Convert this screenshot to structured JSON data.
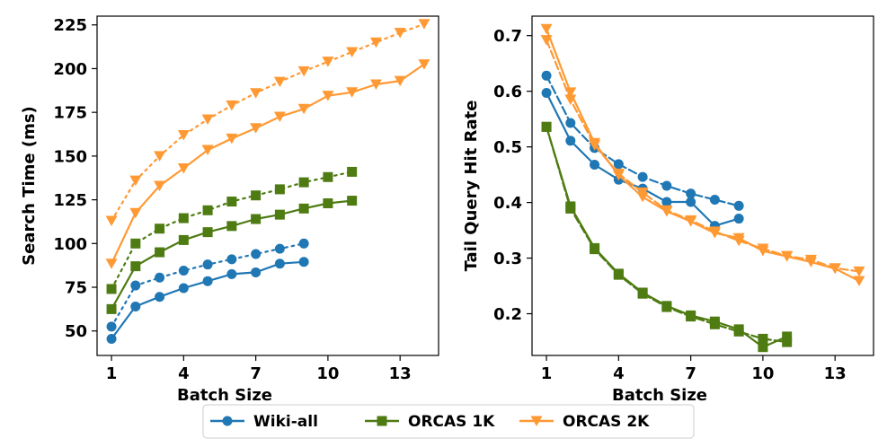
{
  "chart_data": [
    {
      "type": "line",
      "xlabel": "Batch Size",
      "ylabel": "Search Time (ms)",
      "xlim": [
        0.4,
        14.6
      ],
      "ylim": [
        36,
        230
      ],
      "xticks": [
        1,
        4,
        7,
        10,
        13
      ],
      "yticks": [
        50,
        75,
        100,
        125,
        150,
        175,
        200,
        225
      ],
      "series": [
        {
          "name": "Wiki-all",
          "variant": "solid",
          "color": "#1f77b4",
          "marker": "circle",
          "x": [
            1,
            2,
            3,
            4,
            5,
            6,
            7,
            8,
            9
          ],
          "y": [
            45.5,
            64,
            69.5,
            74.5,
            78.5,
            82.5,
            83.5,
            88.5,
            89.5
          ]
        },
        {
          "name": "Wiki-all",
          "variant": "dotted",
          "color": "#1f77b4",
          "marker": "circle",
          "x": [
            1,
            2,
            3,
            4,
            5,
            6,
            7,
            8,
            9
          ],
          "y": [
            52.5,
            76,
            80.5,
            84.5,
            88,
            91,
            94,
            97,
            100
          ]
        },
        {
          "name": "ORCAS 1K",
          "variant": "solid",
          "color": "#4e7b12",
          "marker": "square",
          "x": [
            1,
            2,
            3,
            4,
            5,
            6,
            7,
            8,
            9,
            10,
            11
          ],
          "y": [
            62.5,
            87,
            95,
            102,
            106.5,
            110,
            114,
            116.5,
            120,
            123,
            124.5
          ]
        },
        {
          "name": "ORCAS 1K",
          "variant": "dotted",
          "color": "#4e7b12",
          "marker": "square",
          "x": [
            1,
            2,
            3,
            4,
            5,
            6,
            7,
            8,
            9,
            10,
            11
          ],
          "y": [
            74,
            100,
            108.5,
            114.5,
            119,
            124,
            127.5,
            131,
            135,
            138,
            141
          ]
        },
        {
          "name": "ORCAS 2K",
          "variant": "solid",
          "color": "#ff9933",
          "marker": "triangle-down",
          "x": [
            1,
            2,
            3,
            4,
            5,
            6,
            7,
            8,
            9,
            10,
            11,
            12,
            13,
            14
          ],
          "y": [
            88.5,
            117.5,
            133,
            143,
            153.5,
            160,
            166,
            172.5,
            177,
            184.5,
            186.5,
            191,
            193,
            202.5
          ]
        },
        {
          "name": "ORCAS 2K",
          "variant": "dotted",
          "color": "#ff9933",
          "marker": "triangle-down",
          "x": [
            1,
            2,
            3,
            4,
            5,
            6,
            7,
            8,
            9,
            10,
            11,
            12,
            13,
            14
          ],
          "y": [
            113,
            136,
            150,
            162,
            171,
            179,
            186,
            192.5,
            198.5,
            204,
            209.5,
            215,
            220.5,
            225.5
          ]
        }
      ]
    },
    {
      "type": "line",
      "xlabel": "Batch Size",
      "ylabel": "Tail Query Hit Rate",
      "xlim": [
        0.4,
        14.6
      ],
      "ylim": [
        0.125,
        0.735
      ],
      "xticks": [
        1,
        4,
        7,
        10,
        13
      ],
      "yticks": [
        0.2,
        0.3,
        0.4,
        0.5,
        0.6,
        0.7
      ],
      "series": [
        {
          "name": "Wiki-all",
          "variant": "solid",
          "color": "#1f77b4",
          "marker": "circle",
          "x": [
            1,
            2,
            3,
            4,
            5,
            6,
            7,
            8,
            9
          ],
          "y": [
            0.597,
            0.511,
            0.468,
            0.441,
            0.425,
            0.401,
            0.401,
            0.358,
            0.371
          ]
        },
        {
          "name": "Wiki-all",
          "variant": "dashed",
          "color": "#1f77b4",
          "marker": "circle",
          "x": [
            1,
            2,
            3,
            4,
            5,
            6,
            7,
            8,
            9
          ],
          "y": [
            0.628,
            0.543,
            0.498,
            0.469,
            0.446,
            0.43,
            0.416,
            0.405,
            0.394
          ]
        },
        {
          "name": "ORCAS 1K",
          "variant": "solid",
          "color": "#4e7b12",
          "marker": "square",
          "x": [
            1,
            2,
            3,
            4,
            5,
            6,
            7,
            8,
            9,
            10,
            11
          ],
          "y": [
            0.536,
            0.393,
            0.318,
            0.272,
            0.238,
            0.214,
            0.197,
            0.186,
            0.172,
            0.14,
            0.159
          ]
        },
        {
          "name": "ORCAS 1K",
          "variant": "dashed",
          "color": "#4e7b12",
          "marker": "square",
          "x": [
            1,
            2,
            3,
            4,
            5,
            6,
            7,
            8,
            9,
            10,
            11
          ],
          "y": [
            0.536,
            0.389,
            0.316,
            0.27,
            0.236,
            0.212,
            0.195,
            0.181,
            0.168,
            0.155,
            0.149
          ]
        },
        {
          "name": "ORCAS 2K",
          "variant": "solid",
          "color": "#ff9933",
          "marker": "triangle-down",
          "x": [
            1,
            2,
            3,
            4,
            5,
            6,
            7,
            8,
            9,
            10,
            11,
            12,
            13,
            14
          ],
          "y": [
            0.712,
            0.598,
            0.507,
            0.449,
            0.41,
            0.384,
            0.366,
            0.345,
            0.336,
            0.313,
            0.303,
            0.293,
            0.281,
            0.259
          ]
        },
        {
          "name": "ORCAS 2K",
          "variant": "dashed",
          "color": "#ff9933",
          "marker": "triangle-down",
          "x": [
            1,
            2,
            3,
            4,
            5,
            6,
            7,
            8,
            9,
            10,
            11,
            12,
            13,
            14
          ],
          "y": [
            0.692,
            0.585,
            0.503,
            0.452,
            0.418,
            0.386,
            0.368,
            0.348,
            0.331,
            0.317,
            0.304,
            0.297,
            0.282,
            0.276
          ]
        }
      ]
    }
  ],
  "legend": {
    "placement": "bottom-center",
    "entries": [
      {
        "label": "Wiki-all",
        "color": "#1f77b4",
        "marker": "circle"
      },
      {
        "label": "ORCAS 1K",
        "color": "#4e7b12",
        "marker": "square"
      },
      {
        "label": "ORCAS 2K",
        "color": "#ff9933",
        "marker": "triangle-down"
      }
    ]
  }
}
